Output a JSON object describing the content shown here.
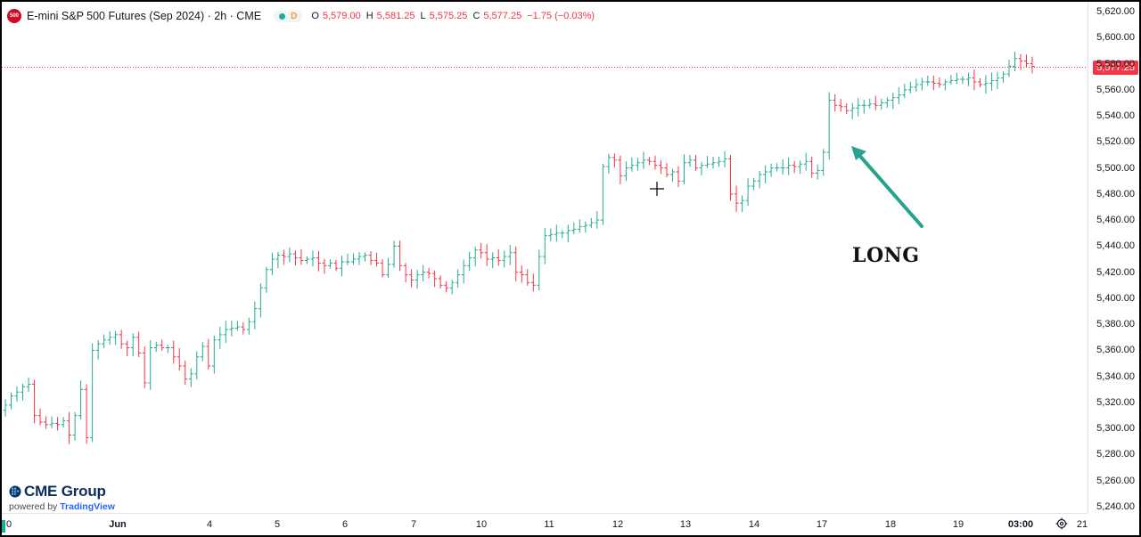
{
  "header": {
    "symbol_icon_text": "500",
    "title": "E-mini S&P 500 Futures (Sep 2024) · 2h · CME",
    "status_badge": "D",
    "ohlc": [
      {
        "k": "O",
        "v": "5,579.00"
      },
      {
        "k": "H",
        "v": "5,581.25"
      },
      {
        "k": "L",
        "v": "5,575.25"
      },
      {
        "k": "C",
        "v": "5,577.25"
      },
      {
        "k": "",
        "v": "−1.75 (−0.03%)"
      }
    ]
  },
  "last_price_tag": "5,577.25",
  "annotation": {
    "text": "LONG"
  },
  "logo": {
    "company": "CME Group",
    "powered_prefix": "powered by",
    "platform": "TradingView"
  },
  "colors": {
    "up": "#22ab94",
    "down": "#f23645",
    "arrow": "#26a38f",
    "price_line": "#f23645"
  },
  "chart_data": {
    "type": "ohlc",
    "title": "E-mini S&P 500 Futures (Sep 2024) · 2h · CME",
    "ylim": [
      5240,
      5620
    ],
    "y_ticks": [
      "5,620.00",
      "5,600.00",
      "5,580.00",
      "5,560.00",
      "5,540.00",
      "5,520.00",
      "5,500.00",
      "5,480.00",
      "5,460.00",
      "5,440.00",
      "5,420.00",
      "5,400.00",
      "5,380.00",
      "5,360.00",
      "5,340.00",
      "5,320.00",
      "5,300.00",
      "5,280.00",
      "5,260.00",
      "5,240.00"
    ],
    "x_labels": [
      {
        "label": "0",
        "bold": false
      },
      {
        "label": "Jun",
        "bold": true
      },
      {
        "label": "4",
        "bold": false
      },
      {
        "label": "5",
        "bold": false
      },
      {
        "label": "6",
        "bold": false
      },
      {
        "label": "7",
        "bold": false
      },
      {
        "label": "10",
        "bold": false
      },
      {
        "label": "11",
        "bold": false
      },
      {
        "label": "12",
        "bold": false
      },
      {
        "label": "13",
        "bold": false
      },
      {
        "label": "14",
        "bold": false
      },
      {
        "label": "17",
        "bold": false
      },
      {
        "label": "18",
        "bold": false
      },
      {
        "label": "19",
        "bold": false
      },
      {
        "label": "03:00",
        "bold": true
      },
      {
        "label": "21",
        "bold": false
      }
    ],
    "last_price": 5577.25,
    "ohlc_close_series": [
      5318,
      5325,
      5328,
      5332,
      5334,
      5310,
      5305,
      5303,
      5304,
      5303,
      5306,
      5295,
      5310,
      5330,
      5293,
      5360,
      5365,
      5368,
      5370,
      5372,
      5365,
      5362,
      5370,
      5358,
      5335,
      5362,
      5364,
      5362,
      5362,
      5355,
      5348,
      5338,
      5342,
      5355,
      5363,
      5348,
      5368,
      5372,
      5376,
      5377,
      5378,
      5376,
      5382,
      5392,
      5408,
      5422,
      5430,
      5433,
      5432,
      5434,
      5431,
      5429,
      5430,
      5431,
      5427,
      5425,
      5427,
      5423,
      5428,
      5428,
      5430,
      5432,
      5433,
      5429,
      5427,
      5418,
      5426,
      5440,
      5425,
      5418,
      5414,
      5418,
      5420,
      5419,
      5415,
      5410,
      5408,
      5412,
      5418,
      5425,
      5431,
      5437,
      5435,
      5430,
      5431,
      5429,
      5432,
      5435,
      5420,
      5418,
      5412,
      5410,
      5432,
      5448,
      5449,
      5450,
      5450,
      5452,
      5453,
      5455,
      5456,
      5458,
      5460,
      5501,
      5508,
      5506,
      5494,
      5500,
      5502,
      5504,
      5506,
      5505,
      5502,
      5500,
      5495,
      5497,
      5490,
      5504,
      5506,
      5500,
      5502,
      5503,
      5504,
      5505,
      5507,
      5480,
      5473,
      5475,
      5486,
      5490,
      5495,
      5497,
      5500,
      5500,
      5500,
      5502,
      5501,
      5503,
      5505,
      5496,
      5498,
      5512,
      5552,
      5548,
      5547,
      5544,
      5546,
      5548,
      5548,
      5549,
      5548,
      5550,
      5552,
      5554,
      5556,
      5560,
      5562,
      5564,
      5566,
      5566,
      5565,
      5564,
      5566,
      5567,
      5568,
      5568,
      5569,
      5566,
      5564,
      5565,
      5567,
      5569,
      5572,
      5578,
      5584,
      5582,
      5580,
      5578
    ]
  }
}
